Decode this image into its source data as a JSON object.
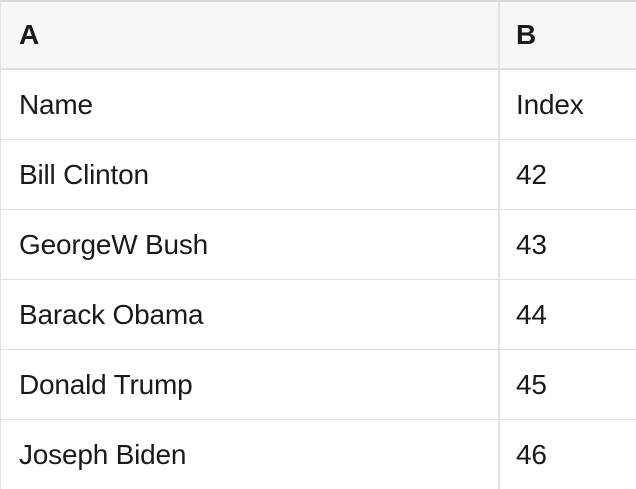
{
  "table": {
    "columns": [
      {
        "key": "A",
        "label": "A"
      },
      {
        "key": "B",
        "label": "B"
      }
    ],
    "rows": [
      [
        "Name",
        "Index"
      ],
      [
        "Bill Clinton",
        42
      ],
      [
        "GeorgeW Bush",
        43
      ],
      [
        "Barack Obama",
        44
      ],
      [
        "Donald Trump",
        45
      ],
      [
        "Joseph Biden",
        46
      ]
    ]
  },
  "theme": {
    "header_bg": "#f7f7f7",
    "border": "#e3e3e3",
    "border_strong": "#dadada",
    "text": "#1a1a1a",
    "row_bg": "#ffffff"
  }
}
